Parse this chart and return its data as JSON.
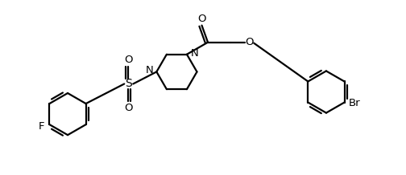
{
  "background_color": "#ffffff",
  "line_color": "#000000",
  "line_width": 1.6,
  "font_size": 9.5,
  "figsize": [
    5.04,
    2.18
  ],
  "dpi": 100,
  "xlim": [
    0,
    10
  ],
  "ylim": [
    0,
    4.32
  ]
}
